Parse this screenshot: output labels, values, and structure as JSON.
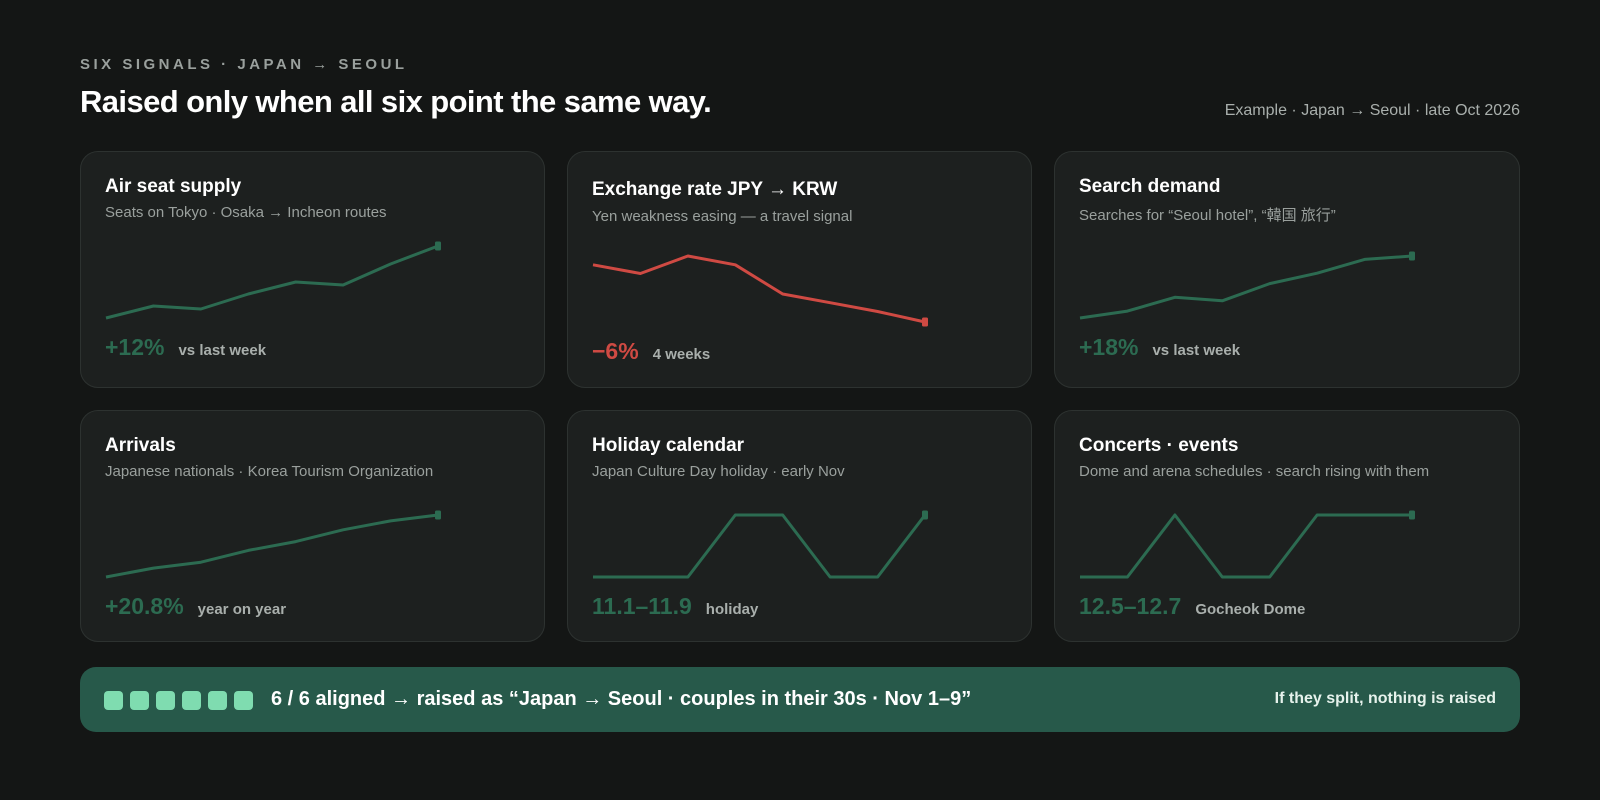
{
  "header": {
    "eyebrow": "SIX SIGNALS · JAPAN → SEOUL",
    "headline": "Raised only when all six point the same way.",
    "example": "Example · Japan → Seoul · late Oct 2026"
  },
  "colors": {
    "up": "#2c6b51",
    "down": "#cf4a43",
    "card_bg": "#1d201f",
    "banner_bg": "#27594a",
    "square": "#7fdcb0"
  },
  "chart_data": [
    {
      "type": "line",
      "id": "air",
      "title": "Air seat supply",
      "subtitle": "Seats on Tokyo · Osaka → Incheon routes",
      "metric": "+12%",
      "note": "vs last week",
      "direction": "up",
      "values": [
        2,
        4,
        3.5,
        6,
        8,
        7.5,
        11,
        14
      ]
    },
    {
      "type": "line",
      "id": "fx",
      "title": "Exchange rate JPY → KRW",
      "subtitle": "Yen weakness easing — a travel signal",
      "metric": "−6%",
      "note": "4 weeks",
      "direction": "down",
      "values": [
        9,
        7.5,
        10.5,
        9,
        4,
        2.5,
        1,
        -0.8
      ]
    },
    {
      "type": "line",
      "id": "search",
      "title": "Search demand",
      "subtitle": "Searches for “Seoul hotel”, “韓国 旅行”",
      "metric": "+18%",
      "note": "vs last week",
      "direction": "up",
      "values": [
        2,
        4,
        8,
        7,
        12,
        15,
        19,
        20
      ]
    },
    {
      "type": "line",
      "id": "arrivals",
      "title": "Arrivals",
      "subtitle": "Japanese nationals · Korea Tourism Organization",
      "metric": "+20.8%",
      "note": "year on year",
      "direction": "up",
      "values": [
        2,
        5,
        7,
        11,
        14,
        18,
        21,
        23
      ]
    },
    {
      "type": "line",
      "id": "holiday",
      "title": "Holiday calendar",
      "subtitle": "Japan Culture Day holiday · early Nov",
      "metric": "11.1–11.9",
      "note": "holiday",
      "direction": "up",
      "values": [
        0,
        0,
        0,
        1,
        1,
        0,
        0,
        1
      ]
    },
    {
      "type": "line",
      "id": "events",
      "title": "Concerts · events",
      "subtitle": "Dome and arena schedules · search rising with them",
      "metric": "12.5–12.7",
      "note": "Gocheok Dome",
      "direction": "up",
      "values": [
        0,
        0,
        1,
        0,
        0,
        1,
        1,
        1
      ]
    }
  ],
  "banner": {
    "squares": 6,
    "text": "6 / 6 aligned → raised as “Japan → Seoul · couples in their 30s · Nov 1–9”",
    "right": "If they split, nothing is raised"
  }
}
